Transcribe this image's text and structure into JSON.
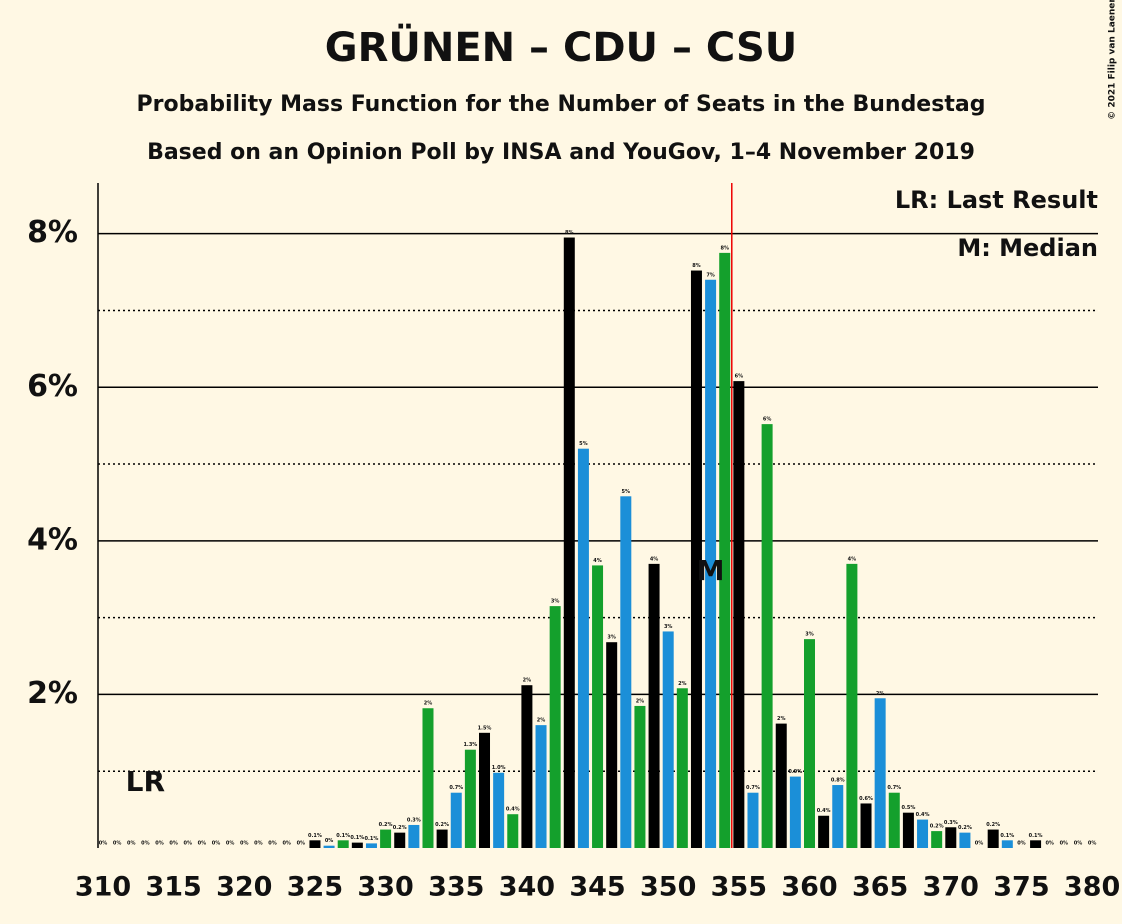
{
  "chart_data": {
    "type": "bar",
    "title": "GRÜNEN – CDU – CSU",
    "subtitle": "Probability Mass Function for the Number of Seats in the Bundestag",
    "subtitle2": "Based on an Opinion Poll by INSA and YouGov, 1–4 November 2019",
    "copyright": "© 2021 Filip van Laenen",
    "legend": [
      "LR: Last Result",
      "M: Median"
    ],
    "categories": [
      310,
      311,
      312,
      313,
      314,
      315,
      316,
      317,
      318,
      319,
      320,
      321,
      322,
      323,
      324,
      325,
      326,
      327,
      328,
      329,
      330,
      331,
      332,
      333,
      334,
      335,
      336,
      337,
      338,
      339,
      340,
      341,
      342,
      343,
      344,
      345,
      346,
      347,
      348,
      349,
      350,
      351,
      352,
      353,
      354,
      355,
      356,
      357,
      358,
      359,
      360,
      361,
      362,
      363,
      364,
      365,
      366,
      367,
      368,
      369,
      370,
      371,
      372,
      373,
      374,
      375,
      376,
      377,
      378,
      379,
      380
    ],
    "values": [
      0,
      0,
      0,
      0,
      0,
      0,
      0,
      0,
      0,
      0,
      0,
      0,
      0,
      0,
      0,
      0.1,
      0.03,
      0.1,
      0.07,
      0.06,
      0.24,
      0.2,
      0.3,
      1.82,
      0.24,
      0.72,
      1.28,
      1.5,
      0.98,
      0.44,
      2.12,
      1.6,
      3.15,
      7.95,
      5.2,
      3.68,
      2.68,
      4.58,
      1.85,
      3.7,
      2.82,
      2.08,
      7.52,
      7.4,
      7.75,
      6.08,
      0.72,
      5.52,
      1.62,
      0.93,
      2.72,
      0.42,
      0.82,
      3.7,
      0.58,
      1.95,
      0.72,
      0.46,
      0.37,
      0.22,
      0.27,
      0.2,
      0,
      0.24,
      0.1,
      0,
      0.1,
      0,
      0,
      0,
      0
    ],
    "value_labels": [
      "0%",
      "0%",
      "0%",
      "0%",
      "0%",
      "0%",
      "0%",
      "0%",
      "0%",
      "0%",
      "0%",
      "0%",
      "0%",
      "0%",
      "0%",
      "0.1%",
      "0%",
      "0.1%",
      "0.1%",
      "0.1%",
      "0.2%",
      "0.2%",
      "0.3%",
      "2%",
      "0.2%",
      "0.7%",
      "1.3%",
      "1.5%",
      "1.0%",
      "0.4%",
      "2%",
      "2%",
      "3%",
      "8%",
      "5%",
      "4%",
      "3%",
      "5%",
      "2%",
      "4%",
      "3%",
      "2%",
      "8%",
      "7%",
      "8%",
      "6%",
      "0.7%",
      "6%",
      "2%",
      "0.9%",
      "3%",
      "0.4%",
      "0.8%",
      "4%",
      "0.6%",
      "2%",
      "0.7%",
      "0.5%",
      "0.4%",
      "0.2%",
      "0.3%",
      "0.2%",
      "0%",
      "0.2%",
      "0.1%",
      "0%",
      "0.1%",
      "0%",
      "0%",
      "0%",
      "0%"
    ],
    "colors": [
      "#000000",
      "#1b8fd8",
      "#14a02c"
    ],
    "xticks": [
      310,
      315,
      320,
      325,
      330,
      335,
      340,
      345,
      350,
      355,
      360,
      365,
      370,
      375,
      380
    ],
    "ylim": [
      0,
      8.66
    ],
    "yticks": [
      {
        "value": 2,
        "label": "2%"
      },
      {
        "value": 4,
        "label": "4%"
      },
      {
        "value": 6,
        "label": "6%"
      },
      {
        "value": 8,
        "label": "8%"
      }
    ],
    "minor_yticks": [
      1,
      3,
      5,
      7
    ],
    "majority": 355,
    "annotations": [
      {
        "text": "LR",
        "x": 313,
        "y": 0.95
      },
      {
        "text": "M",
        "x": 353,
        "y": 3.7
      }
    ]
  }
}
